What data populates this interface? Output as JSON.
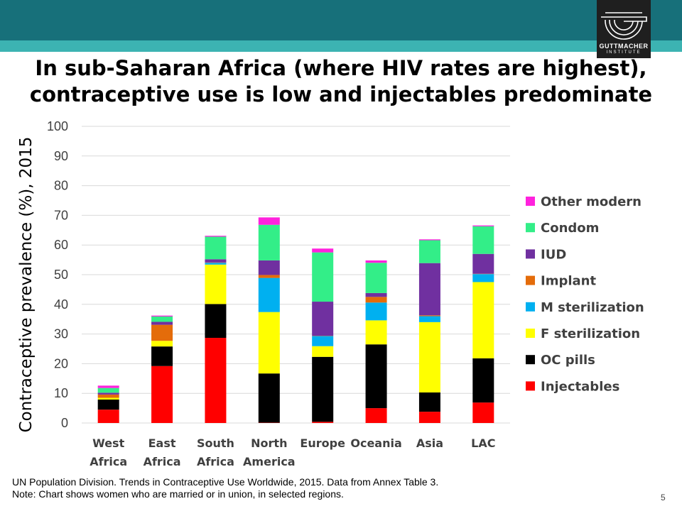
{
  "header": {
    "logo_name": "GUTTMACHER",
    "logo_sub": "INSTITUTE",
    "colors": {
      "band": "#17707a",
      "stripe": "#3cb3b2",
      "logo_bg": "#1f1f1f"
    }
  },
  "title_lines": [
    "In sub-Saharan Africa (where HIV rates are highest),",
    "contraceptive use is low and injectables predominate"
  ],
  "footnote": {
    "line1": "UN Population Division. Trends in Contraceptive Use Worldwide, 2015. Data from Annex Table 3.",
    "line2": "Note: Chart shows women who are married or in union, in selected regions."
  },
  "slide_number": "5",
  "chart_data": {
    "type": "bar",
    "stacked": true,
    "ylabel": "Contraceptive prevalence (%), 2015",
    "xlabel": "",
    "ylim": [
      0,
      100
    ],
    "yticks": [
      0,
      10,
      20,
      30,
      40,
      50,
      60,
      70,
      80,
      90,
      100
    ],
    "grid": true,
    "legend_position": "right",
    "categories": [
      [
        "West",
        "Africa"
      ],
      [
        "East",
        "Africa"
      ],
      [
        "South",
        "Africa"
      ],
      [
        "North",
        "America"
      ],
      [
        "Europe"
      ],
      [
        "Oceania"
      ],
      [
        "Asia"
      ],
      [
        "LAC"
      ]
    ],
    "series": [
      {
        "name": "Injectables",
        "color": "#ff0000",
        "values": [
          4.5,
          19.2,
          28.7,
          0.1,
          0.4,
          5.0,
          3.8,
          6.9
        ]
      },
      {
        "name": "OC pills",
        "color": "#000000",
        "values": [
          3.4,
          6.6,
          11.4,
          16.6,
          21.9,
          21.5,
          6.5,
          14.9
        ]
      },
      {
        "name": "F sterilization",
        "color": "#ffff00",
        "values": [
          0.6,
          1.9,
          13.3,
          20.7,
          3.6,
          8.1,
          23.7,
          25.7
        ]
      },
      {
        "name": "M sterilization",
        "color": "#00b0f0",
        "values": [
          0.0,
          0.0,
          0.6,
          11.5,
          3.4,
          6.0,
          2.0,
          2.7
        ]
      },
      {
        "name": "Implant",
        "color": "#e46c0a",
        "values": [
          1.1,
          5.4,
          0.1,
          1.0,
          0.1,
          1.9,
          0.3,
          0.1
        ]
      },
      {
        "name": "IUD",
        "color": "#7030a0",
        "values": [
          0.6,
          1.0,
          1.1,
          4.9,
          11.5,
          1.3,
          17.6,
          6.7
        ]
      },
      {
        "name": "Condom",
        "color": "#33ee88",
        "values": [
          1.6,
          1.8,
          7.6,
          12.0,
          16.6,
          10.2,
          7.7,
          9.3
        ]
      },
      {
        "name": "Other modern",
        "color": "#ff22dd",
        "values": [
          0.8,
          0.3,
          0.3,
          2.5,
          1.3,
          0.8,
          0.3,
          0.3
        ]
      }
    ]
  }
}
